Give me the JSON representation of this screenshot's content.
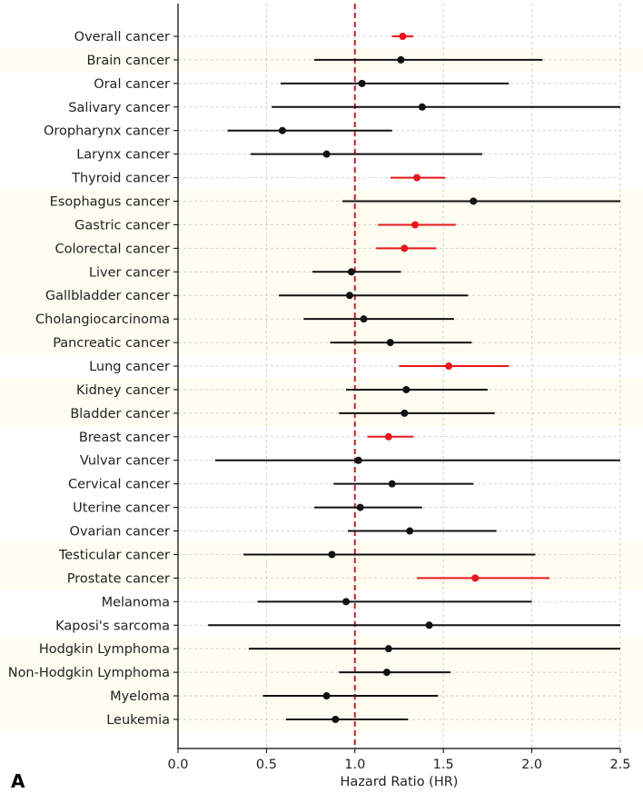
{
  "panel_label": "A",
  "chart_data": {
    "type": "forest",
    "xlabel": "Hazard Ratio (HR)",
    "xlim": [
      0.0,
      2.5
    ],
    "xticks": [
      "0.0",
      "0.5",
      "1.0",
      "1.5",
      "2.0",
      "2.5"
    ],
    "reference_line": 1.0,
    "colors": {
      "significant": "#e8161b",
      "nonsignificant": "#111111",
      "reference": "#cc1f1f",
      "band": "#fdfdf1"
    },
    "rows": [
      {
        "label": "Overall cancer",
        "hr": 1.27,
        "low": 1.21,
        "high": 1.33,
        "significant": true,
        "band": false
      },
      {
        "label": "Brain cancer",
        "hr": 1.26,
        "low": 0.77,
        "high": 2.06,
        "significant": false,
        "band": true
      },
      {
        "label": "Oral cancer",
        "hr": 1.04,
        "low": 0.58,
        "high": 1.87,
        "significant": false,
        "band": false
      },
      {
        "label": "Salivary cancer",
        "hr": 1.38,
        "low": 0.53,
        "high": 2.5,
        "significant": false,
        "band": false
      },
      {
        "label": "Oropharynx cancer",
        "hr": 0.59,
        "low": 0.28,
        "high": 1.21,
        "significant": false,
        "band": false
      },
      {
        "label": "Larynx cancer",
        "hr": 0.84,
        "low": 0.41,
        "high": 1.72,
        "significant": false,
        "band": false
      },
      {
        "label": "Thyroid cancer",
        "hr": 1.35,
        "low": 1.2,
        "high": 1.51,
        "significant": true,
        "band": false
      },
      {
        "label": "Esophagus cancer",
        "hr": 1.67,
        "low": 0.93,
        "high": 2.5,
        "significant": false,
        "band": true
      },
      {
        "label": "Gastric cancer",
        "hr": 1.34,
        "low": 1.13,
        "high": 1.57,
        "significant": true,
        "band": true
      },
      {
        "label": "Colorectal cancer",
        "hr": 1.28,
        "low": 1.12,
        "high": 1.46,
        "significant": true,
        "band": true
      },
      {
        "label": "Liver cancer",
        "hr": 0.98,
        "low": 0.76,
        "high": 1.26,
        "significant": false,
        "band": true
      },
      {
        "label": "Gallbladder cancer",
        "hr": 0.97,
        "low": 0.57,
        "high": 1.64,
        "significant": false,
        "band": true
      },
      {
        "label": "Cholangiocarcinoma",
        "hr": 1.05,
        "low": 0.71,
        "high": 1.56,
        "significant": false,
        "band": true
      },
      {
        "label": "Pancreatic cancer",
        "hr": 1.2,
        "low": 0.86,
        "high": 1.66,
        "significant": false,
        "band": true
      },
      {
        "label": "Lung cancer",
        "hr": 1.53,
        "low": 1.25,
        "high": 1.87,
        "significant": true,
        "band": false
      },
      {
        "label": "Kidney cancer",
        "hr": 1.29,
        "low": 0.95,
        "high": 1.75,
        "significant": false,
        "band": true
      },
      {
        "label": "Bladder cancer",
        "hr": 1.28,
        "low": 0.91,
        "high": 1.79,
        "significant": false,
        "band": true
      },
      {
        "label": "Breast cancer",
        "hr": 1.19,
        "low": 1.07,
        "high": 1.33,
        "significant": true,
        "band": false
      },
      {
        "label": "Vulvar cancer",
        "hr": 1.02,
        "low": 0.21,
        "high": 2.5,
        "significant": false,
        "band": false
      },
      {
        "label": "Cervical cancer",
        "hr": 1.21,
        "low": 0.88,
        "high": 1.67,
        "significant": false,
        "band": false
      },
      {
        "label": "Uterine cancer",
        "hr": 1.03,
        "low": 0.77,
        "high": 1.38,
        "significant": false,
        "band": false
      },
      {
        "label": "Ovarian cancer",
        "hr": 1.31,
        "low": 0.96,
        "high": 1.8,
        "significant": false,
        "band": false
      },
      {
        "label": "Testicular cancer",
        "hr": 0.87,
        "low": 0.37,
        "high": 2.02,
        "significant": false,
        "band": true
      },
      {
        "label": "Prostate cancer",
        "hr": 1.68,
        "low": 1.35,
        "high": 2.1,
        "significant": true,
        "band": true
      },
      {
        "label": "Melanoma",
        "hr": 0.95,
        "low": 0.45,
        "high": 2.0,
        "significant": false,
        "band": false
      },
      {
        "label": "Kaposi's sarcoma",
        "hr": 1.42,
        "low": 0.17,
        "high": 2.5,
        "significant": false,
        "band": false
      },
      {
        "label": "Hodgkin Lymphoma",
        "hr": 1.19,
        "low": 0.4,
        "high": 2.5,
        "significant": false,
        "band": true
      },
      {
        "label": "Non-Hodgkin Lymphoma",
        "hr": 1.18,
        "low": 0.91,
        "high": 1.54,
        "significant": false,
        "band": true
      },
      {
        "label": "Myeloma",
        "hr": 0.84,
        "low": 0.48,
        "high": 1.47,
        "significant": false,
        "band": true
      },
      {
        "label": "Leukemia",
        "hr": 0.89,
        "low": 0.61,
        "high": 1.3,
        "significant": false,
        "band": true
      }
    ]
  }
}
